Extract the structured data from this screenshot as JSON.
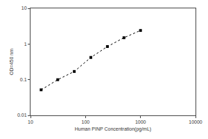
{
  "chart_data": {
    "type": "scatter",
    "x_label": "Human PINP Concentration(pg/mL)",
    "y_label": "OD=450 nm",
    "x": [
      15.6,
      31.25,
      62.5,
      125,
      250,
      500,
      1000
    ],
    "values": [
      0.052,
      0.1,
      0.17,
      0.42,
      0.85,
      1.5,
      2.4
    ],
    "color": "#000000",
    "marker": "square",
    "line_style": "dotted",
    "log": true,
    "grid": false,
    "xlim": [
      10,
      10000
    ],
    "xticks": [
      10,
      100,
      1000,
      10000
    ],
    "ylim": [
      0.01,
      10
    ],
    "yticks": [
      0.01,
      0.1,
      1,
      10
    ]
  }
}
